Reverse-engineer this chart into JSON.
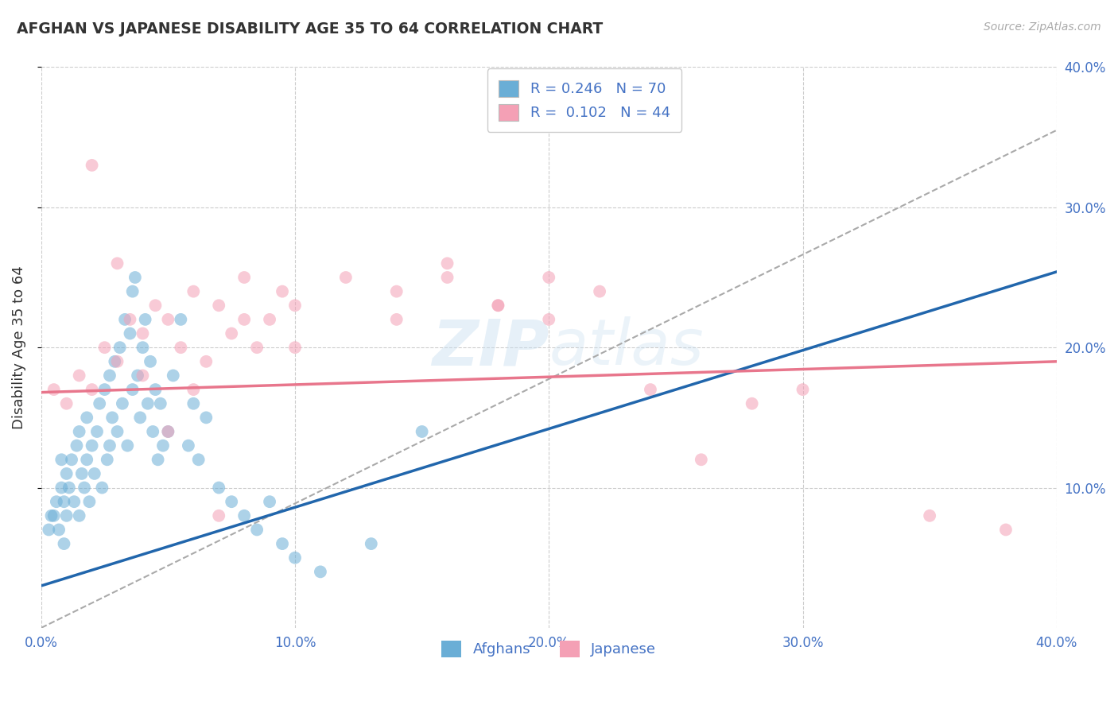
{
  "title": "AFGHAN VS JAPANESE DISABILITY AGE 35 TO 64 CORRELATION CHART",
  "source_text": "Source: ZipAtlas.com",
  "ylabel": "Disability Age 35 to 64",
  "xlim": [
    0.0,
    0.4
  ],
  "ylim": [
    0.0,
    0.4
  ],
  "xtick_vals": [
    0.0,
    0.1,
    0.2,
    0.3,
    0.4
  ],
  "ytick_vals_right": [
    0.1,
    0.2,
    0.3,
    0.4
  ],
  "afghan_R": 0.246,
  "afghan_N": 70,
  "japanese_R": 0.102,
  "japanese_N": 44,
  "afghan_color": "#6aaed6",
  "japanese_color": "#f4a0b5",
  "afghan_line_color": "#2166ac",
  "japanese_line_color": "#e8768c",
  "trend_line_color": "#aaaaaa",
  "background_color": "#ffffff",
  "grid_color": "#cccccc",
  "watermark": "ZIPatlas",
  "legend_label_color": "#4472c4",
  "afghan_line_x0": 0.0,
  "afghan_line_y0": 0.03,
  "afghan_line_x1": 0.25,
  "afghan_line_y1": 0.17,
  "japanese_line_x0": 0.0,
  "japanese_line_y0": 0.168,
  "japanese_line_x1": 0.4,
  "japanese_line_y1": 0.19,
  "diag_line_x0": 0.0,
  "diag_line_y0": 0.0,
  "diag_line_x1": 0.4,
  "diag_line_y1": 0.355,
  "afghan_scatter_x": [
    0.003,
    0.004,
    0.005,
    0.006,
    0.007,
    0.008,
    0.008,
    0.009,
    0.009,
    0.01,
    0.01,
    0.011,
    0.012,
    0.013,
    0.014,
    0.015,
    0.015,
    0.016,
    0.017,
    0.018,
    0.018,
    0.019,
    0.02,
    0.021,
    0.022,
    0.023,
    0.024,
    0.025,
    0.026,
    0.027,
    0.027,
    0.028,
    0.029,
    0.03,
    0.031,
    0.032,
    0.033,
    0.034,
    0.035,
    0.036,
    0.036,
    0.037,
    0.038,
    0.039,
    0.04,
    0.041,
    0.042,
    0.043,
    0.044,
    0.045,
    0.046,
    0.047,
    0.048,
    0.05,
    0.052,
    0.055,
    0.058,
    0.06,
    0.062,
    0.065,
    0.07,
    0.075,
    0.08,
    0.085,
    0.09,
    0.095,
    0.1,
    0.11,
    0.13,
    0.15
  ],
  "afghan_scatter_y": [
    0.07,
    0.08,
    0.08,
    0.09,
    0.07,
    0.1,
    0.12,
    0.06,
    0.09,
    0.08,
    0.11,
    0.1,
    0.12,
    0.09,
    0.13,
    0.08,
    0.14,
    0.11,
    0.1,
    0.12,
    0.15,
    0.09,
    0.13,
    0.11,
    0.14,
    0.16,
    0.1,
    0.17,
    0.12,
    0.18,
    0.13,
    0.15,
    0.19,
    0.14,
    0.2,
    0.16,
    0.22,
    0.13,
    0.21,
    0.24,
    0.17,
    0.25,
    0.18,
    0.15,
    0.2,
    0.22,
    0.16,
    0.19,
    0.14,
    0.17,
    0.12,
    0.16,
    0.13,
    0.14,
    0.18,
    0.22,
    0.13,
    0.16,
    0.12,
    0.15,
    0.1,
    0.09,
    0.08,
    0.07,
    0.09,
    0.06,
    0.05,
    0.04,
    0.06,
    0.14
  ],
  "japanese_scatter_x": [
    0.005,
    0.01,
    0.015,
    0.02,
    0.025,
    0.03,
    0.035,
    0.04,
    0.045,
    0.05,
    0.055,
    0.06,
    0.065,
    0.07,
    0.075,
    0.08,
    0.085,
    0.09,
    0.095,
    0.1,
    0.04,
    0.06,
    0.08,
    0.1,
    0.12,
    0.14,
    0.16,
    0.18,
    0.2,
    0.22,
    0.14,
    0.16,
    0.18,
    0.2,
    0.24,
    0.26,
    0.28,
    0.3,
    0.35,
    0.38,
    0.02,
    0.03,
    0.05,
    0.07
  ],
  "japanese_scatter_y": [
    0.17,
    0.16,
    0.18,
    0.17,
    0.2,
    0.19,
    0.22,
    0.21,
    0.23,
    0.22,
    0.2,
    0.24,
    0.19,
    0.23,
    0.21,
    0.25,
    0.2,
    0.22,
    0.24,
    0.23,
    0.18,
    0.17,
    0.22,
    0.2,
    0.25,
    0.24,
    0.26,
    0.23,
    0.25,
    0.24,
    0.22,
    0.25,
    0.23,
    0.22,
    0.17,
    0.12,
    0.16,
    0.17,
    0.08,
    0.07,
    0.33,
    0.26,
    0.14,
    0.08
  ]
}
